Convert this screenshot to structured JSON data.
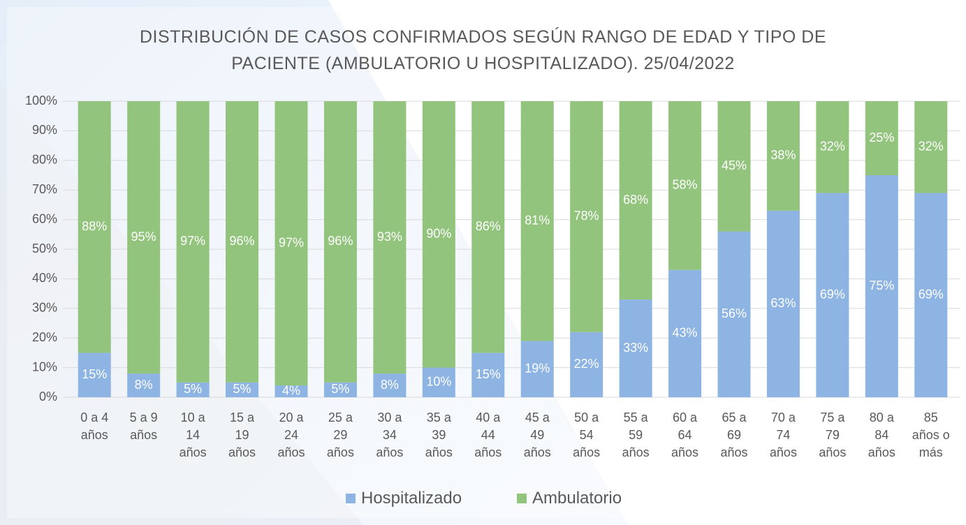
{
  "chart_data": {
    "type": "bar",
    "stacked": true,
    "title": "DISTRIBUCIÓN DE CASOS CONFIRMADOS SEGÚN RANGO DE EDAD Y TIPO DE PACIENTE (AMBULATORIO U HOSPITALIZADO). 25/04/2022",
    "categories": [
      "0 a 4 años",
      "5 a 9 años",
      "10 a 14 años",
      "15 a 19 años",
      "20 a 24 años",
      "25 a 29 años",
      "30 a 34 años",
      "35 a 39 años",
      "40 a 44 años",
      "45 a 49 años",
      "50 a 54 años",
      "55 a 59 años",
      "60 a 64 años",
      "65 a 69 años",
      "70 a 74 años",
      "75 a 79 años",
      "80 a 84 años",
      "85 años o más"
    ],
    "series": [
      {
        "name": "Hospitalizado",
        "color": "#8db4e2",
        "values": [
          15,
          8,
          5,
          5,
          4,
          5,
          8,
          10,
          15,
          19,
          22,
          33,
          43,
          56,
          63,
          69,
          75,
          69
        ],
        "value_labels": [
          "15%",
          "8%",
          "5%",
          "5%",
          "4%",
          "5%",
          "8%",
          "10%",
          "15%",
          "19%",
          "22%",
          "33%",
          "43%",
          "56%",
          "63%",
          "69%",
          "75%",
          "69%"
        ]
      },
      {
        "name": "Ambulatorio",
        "color": "#93c47d",
        "values": [
          88,
          95,
          97,
          96,
          97,
          96,
          93,
          90,
          86,
          81,
          78,
          68,
          58,
          45,
          38,
          32,
          25,
          32
        ],
        "value_labels": [
          "88%",
          "95%",
          "97%",
          "96%",
          "97%",
          "96%",
          "93%",
          "90%",
          "86%",
          "81%",
          "78%",
          "68%",
          "58%",
          "45%",
          "38%",
          "32%",
          "25%",
          "32%"
        ]
      }
    ],
    "ylim": [
      0,
      100
    ],
    "yticks": [
      {
        "value": 0,
        "label": "0%"
      },
      {
        "value": 10,
        "label": "10%"
      },
      {
        "value": 20,
        "label": "20%"
      },
      {
        "value": 30,
        "label": "30%"
      },
      {
        "value": 40,
        "label": "40%"
      },
      {
        "value": 50,
        "label": "50%"
      },
      {
        "value": 60,
        "label": "60%"
      },
      {
        "value": 70,
        "label": "70%"
      },
      {
        "value": 80,
        "label": "80%"
      },
      {
        "value": 90,
        "label": "90%"
      },
      {
        "value": 100,
        "label": "100%"
      }
    ],
    "grid": true,
    "legend": "bottom"
  }
}
